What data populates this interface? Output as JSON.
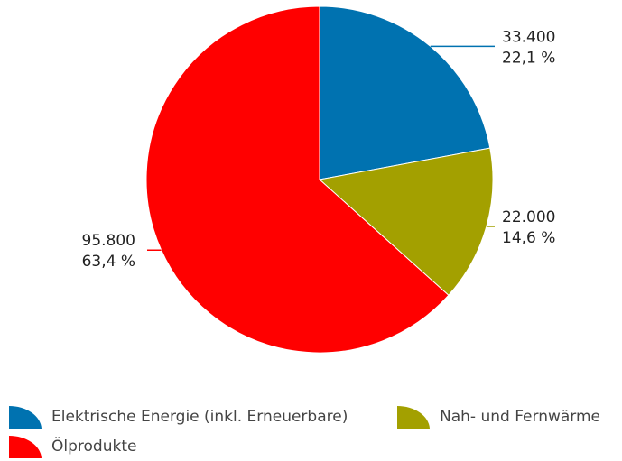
{
  "chart_data": {
    "type": "pie",
    "categories": [
      "Elektrische Energie (inkl. Erneuerbare)",
      "Nah- und Fernwärme",
      "Ölprodukte"
    ],
    "values": [
      33400,
      22000,
      95800
    ],
    "value_labels": [
      "33.400",
      "22.000",
      "95.800"
    ],
    "percentages": [
      22.1,
      14.6,
      63.4
    ],
    "percentage_labels": [
      "22,1 %",
      "14,6 %",
      "63,4 %"
    ],
    "colors": [
      "#0072b0",
      "#a3a000",
      "#ff0000"
    ]
  }
}
